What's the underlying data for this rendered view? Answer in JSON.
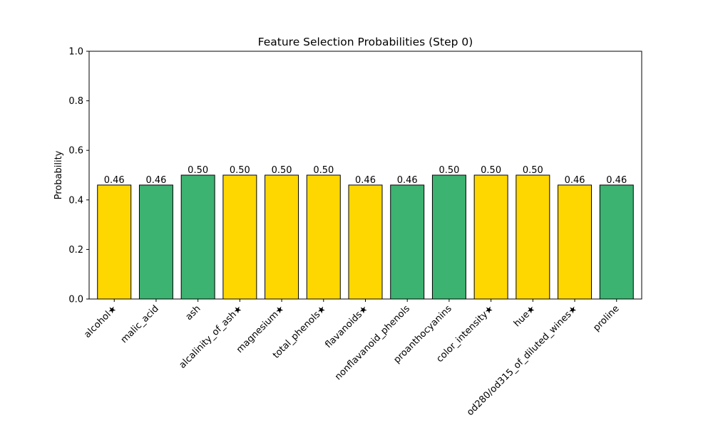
{
  "chart_data": {
    "type": "bar",
    "title": "Feature Selection Probabilities (Step 0)",
    "xlabel": "",
    "ylabel": "Probability",
    "ylim": [
      0,
      1.0
    ],
    "yticks": [
      "0.0",
      "0.2",
      "0.4",
      "0.6",
      "0.8",
      "1.0"
    ],
    "grid": false,
    "categories": [
      "alcohol★",
      "malic_acid",
      "ash",
      "alcalinity_of_ash★",
      "magnesium★",
      "total_phenols★",
      "flavanoids★",
      "nonflavanoid_phenols",
      "proanthocyanins",
      "color_intensity★",
      "hue★",
      "od280/od315_of_diluted_wines★",
      "proline"
    ],
    "values": [
      0.46,
      0.46,
      0.5,
      0.5,
      0.5,
      0.5,
      0.46,
      0.46,
      0.5,
      0.5,
      0.5,
      0.46,
      0.46
    ],
    "value_labels": [
      "0.46",
      "0.46",
      "0.50",
      "0.50",
      "0.50",
      "0.50",
      "0.46",
      "0.46",
      "0.50",
      "0.50",
      "0.50",
      "0.46",
      "0.46"
    ],
    "bar_colors": [
      "#FFD700",
      "#3CB371",
      "#3CB371",
      "#FFD700",
      "#FFD700",
      "#FFD700",
      "#FFD700",
      "#3CB371",
      "#3CB371",
      "#FFD700",
      "#FFD700",
      "#FFD700",
      "#3CB371"
    ],
    "edge_color": "#000000"
  }
}
